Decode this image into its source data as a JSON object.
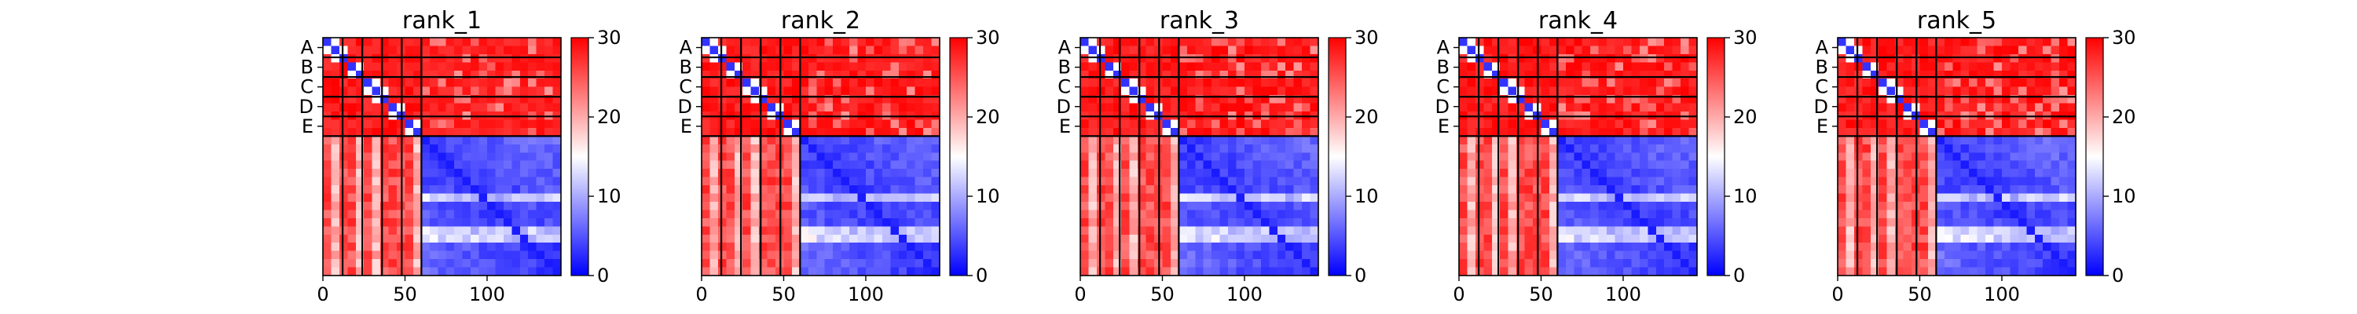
{
  "figure": {
    "colormap": [
      "#0000ff",
      "#ffffff",
      "#ff0000"
    ],
    "background": "#ffffff"
  },
  "chart_data": [
    {
      "type": "heatmap",
      "title": "rank_1",
      "chains": [
        "A",
        "B",
        "C",
        "D",
        "E"
      ],
      "chain_boundaries": [
        0,
        12,
        24,
        36,
        48,
        60,
        145
      ],
      "xticks": [
        0,
        50,
        100
      ],
      "xlim": [
        0,
        145
      ],
      "ylim": [
        145,
        0
      ],
      "colorbar": {
        "vmin": 0,
        "vmax": 30,
        "ticks": [
          0,
          10,
          20,
          30
        ]
      }
    },
    {
      "type": "heatmap",
      "title": "rank_2",
      "chains": [
        "A",
        "B",
        "C",
        "D",
        "E"
      ],
      "chain_boundaries": [
        0,
        12,
        24,
        36,
        48,
        60,
        145
      ],
      "xticks": [
        0,
        50,
        100
      ],
      "xlim": [
        0,
        145
      ],
      "ylim": [
        145,
        0
      ],
      "colorbar": {
        "vmin": 0,
        "vmax": 30,
        "ticks": [
          0,
          10,
          20,
          30
        ]
      }
    },
    {
      "type": "heatmap",
      "title": "rank_3",
      "chains": [
        "A",
        "B",
        "C",
        "D",
        "E"
      ],
      "chain_boundaries": [
        0,
        12,
        24,
        36,
        48,
        60,
        145
      ],
      "xticks": [
        0,
        50,
        100
      ],
      "xlim": [
        0,
        145
      ],
      "ylim": [
        145,
        0
      ],
      "colorbar": {
        "vmin": 0,
        "vmax": 30,
        "ticks": [
          0,
          10,
          20,
          30
        ]
      }
    },
    {
      "type": "heatmap",
      "title": "rank_4",
      "chains": [
        "A",
        "B",
        "C",
        "D",
        "E"
      ],
      "chain_boundaries": [
        0,
        12,
        24,
        36,
        48,
        60,
        145
      ],
      "xticks": [
        0,
        50,
        100
      ],
      "xlim": [
        0,
        145
      ],
      "ylim": [
        145,
        0
      ],
      "colorbar": {
        "vmin": 0,
        "vmax": 30,
        "ticks": [
          0,
          10,
          20,
          30
        ]
      }
    },
    {
      "type": "heatmap",
      "title": "rank_5",
      "chains": [
        "A",
        "B",
        "C",
        "D",
        "E"
      ],
      "chain_boundaries": [
        0,
        12,
        24,
        36,
        48,
        60,
        145
      ],
      "xticks": [
        0,
        50,
        100
      ],
      "xlim": [
        0,
        145
      ],
      "ylim": [
        145,
        0
      ],
      "colorbar": {
        "vmin": 0,
        "vmax": 30,
        "ticks": [
          0,
          10,
          20,
          30
        ]
      }
    }
  ]
}
